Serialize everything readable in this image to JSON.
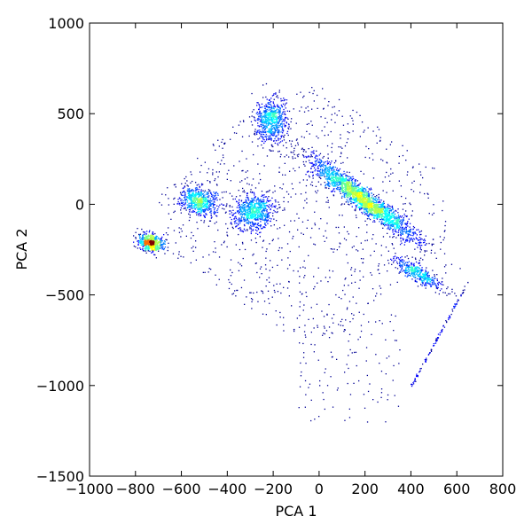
{
  "chart_data": {
    "type": "scatter",
    "title": "",
    "xlabel": "PCA 1",
    "ylabel": "PCA 2",
    "xlim": [
      -1000,
      800
    ],
    "ylim": [
      -1500,
      1000
    ],
    "xticks": [
      -1000,
      -800,
      -600,
      -400,
      -200,
      0,
      200,
      400,
      600,
      800
    ],
    "yticks": [
      -1500,
      -1000,
      -500,
      0,
      500,
      1000
    ],
    "xtick_labels": [
      "−1000",
      "−800",
      "−600",
      "−400",
      "−200",
      "0",
      "200",
      "400",
      "600",
      "800"
    ],
    "ytick_labels": [
      "−1500",
      "−1000",
      "−500",
      "0",
      "500",
      "1000"
    ],
    "colormap": "jet (point density)",
    "grid": false,
    "clusters": [
      {
        "cx": -735,
        "cy": -210,
        "sx": 25,
        "sy": 22,
        "rho": -0.2,
        "weight": 0.9
      },
      {
        "cx": -525,
        "cy": 20,
        "sx": 40,
        "sy": 40,
        "rho": -0.3,
        "weight": 0.9
      },
      {
        "cx": -290,
        "cy": -35,
        "sx": 45,
        "sy": 50,
        "rho": 0.1,
        "weight": 1.0
      },
      {
        "cx": -210,
        "cy": 470,
        "sx": 35,
        "sy": 60,
        "rho": 0.1,
        "weight": 0.9
      },
      {
        "cx": 190,
        "cy": 30,
        "sx": 115,
        "sy": 110,
        "rho": -0.95,
        "weight": 3.2
      },
      {
        "cx": 430,
        "cy": -380,
        "sx": 55,
        "sy": 45,
        "rho": -0.85,
        "weight": 0.6
      }
    ],
    "density_peaks": [
      {
        "x": -745,
        "y": -205
      },
      {
        "x": 200,
        "y": 40
      }
    ],
    "diagonal_streak": {
      "x_range": [
        400,
        650
      ],
      "y_range": [
        -1000,
        -420
      ]
    }
  }
}
